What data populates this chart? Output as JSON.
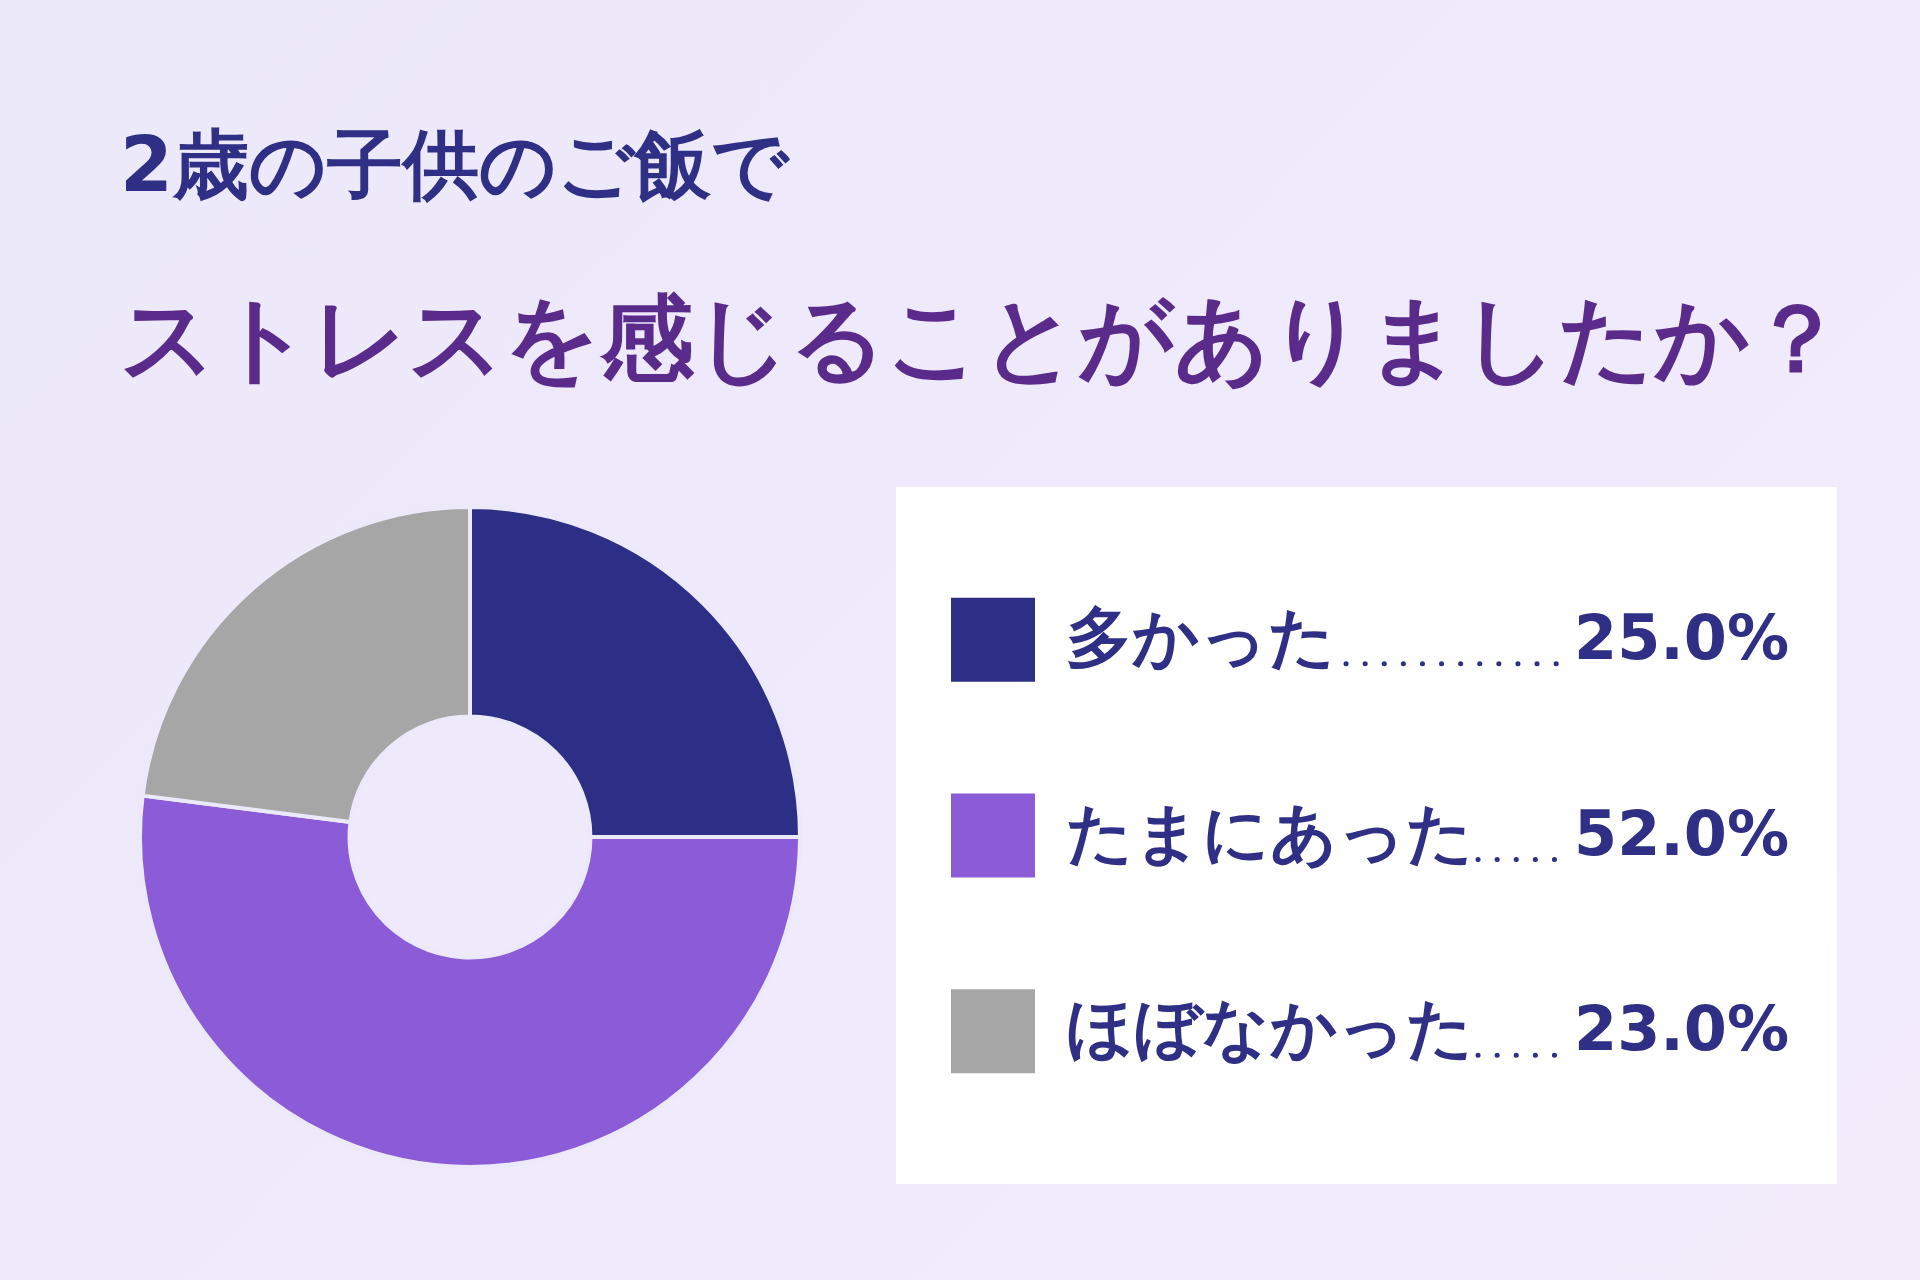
{
  "chart_data": {
    "type": "donut",
    "title": "2歳の子供のご飯で",
    "subtitle": "ストレスを感じることがありましたか？",
    "categories": [
      "多かった",
      "たまにあった",
      "ほぼなかった"
    ],
    "values": [
      25,
      52,
      23
    ],
    "value_labels": [
      "25.0%",
      "52.0%",
      "23.0%"
    ],
    "colors": [
      "#2d2f86",
      "#8c5bd8",
      "#a6a6a6"
    ],
    "legend": "right"
  }
}
